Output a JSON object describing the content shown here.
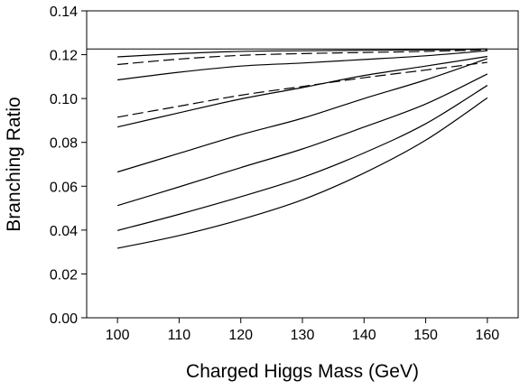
{
  "chart_data": {
    "type": "line",
    "title": "",
    "xlabel": "Charged Higgs Mass (GeV)",
    "ylabel": "Branching Ratio",
    "xlim": [
      95,
      165
    ],
    "ylim": [
      0,
      0.14
    ],
    "x_ticks": [
      "100",
      "110",
      "120",
      "130",
      "140",
      "150",
      "160"
    ],
    "y_ticks": [
      "0.00",
      "0.02",
      "0.04",
      "0.06",
      "0.08",
      "0.10",
      "0.12",
      "0.14"
    ],
    "grid": false,
    "legend": "none",
    "reference_line": {
      "y": 0.1226,
      "style": "solid"
    },
    "x": [
      100,
      110,
      120,
      130,
      140,
      150,
      160
    ],
    "series": [
      {
        "style": "solid",
        "values": [
          0.119,
          0.1205,
          0.1215,
          0.1218,
          0.122,
          0.1222,
          0.1226
        ]
      },
      {
        "style": "dashed",
        "values": [
          0.1155,
          0.118,
          0.1197,
          0.1205,
          0.121,
          0.1215,
          0.1222
        ]
      },
      {
        "style": "solid",
        "values": [
          0.1085,
          0.112,
          0.1148,
          0.1162,
          0.1178,
          0.1195,
          0.1218
        ]
      },
      {
        "style": "dashed",
        "values": [
          0.0915,
          0.0965,
          0.1015,
          0.1055,
          0.1095,
          0.113,
          0.1165
        ]
      },
      {
        "style": "solid",
        "values": [
          0.087,
          0.0935,
          0.0998,
          0.105,
          0.1105,
          0.1148,
          0.1192
        ]
      },
      {
        "style": "solid",
        "values": [
          0.0665,
          0.075,
          0.0835,
          0.091,
          0.1,
          0.1085,
          0.1182
        ]
      },
      {
        "style": "solid",
        "values": [
          0.0512,
          0.0597,
          0.0685,
          0.077,
          0.087,
          0.0975,
          0.1112
        ]
      },
      {
        "style": "solid",
        "values": [
          0.0398,
          0.0472,
          0.0552,
          0.064,
          0.0752,
          0.0885,
          0.106
        ]
      },
      {
        "style": "solid",
        "values": [
          0.0317,
          0.0375,
          0.0448,
          0.0538,
          0.066,
          0.081,
          0.1003
        ]
      }
    ]
  }
}
